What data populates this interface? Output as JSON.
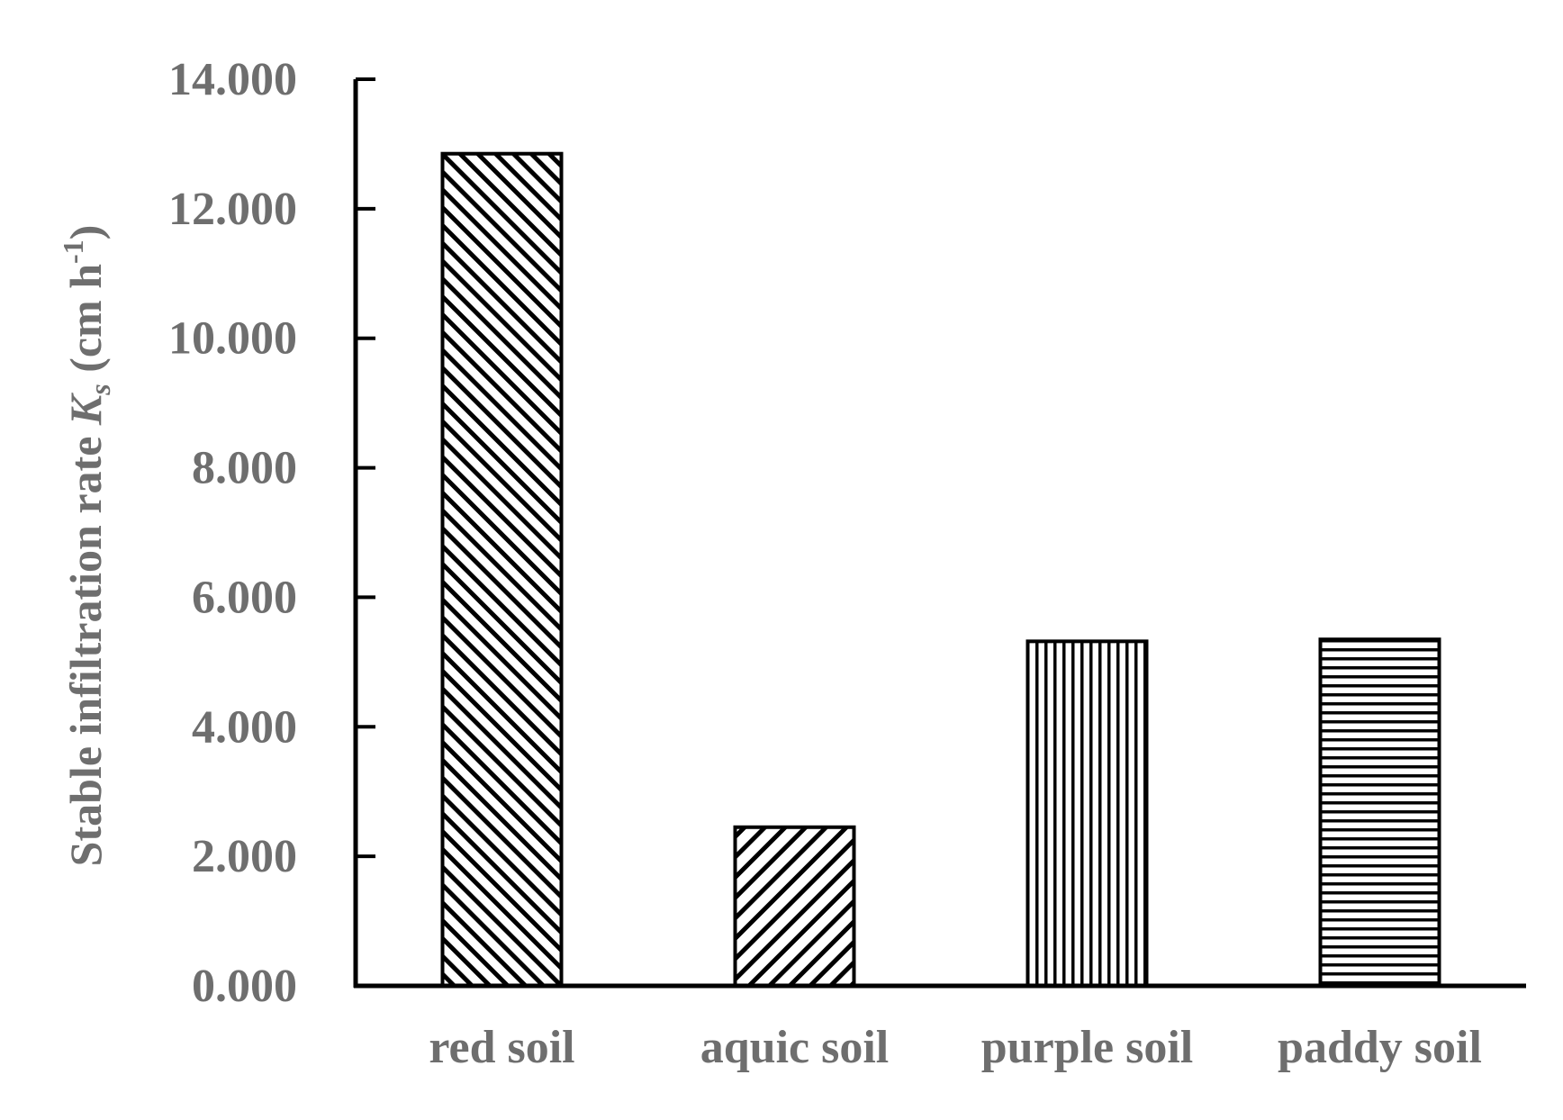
{
  "chart_data": {
    "type": "bar",
    "categories": [
      "red soil",
      "aquic soil",
      "purple soil",
      "paddy soil"
    ],
    "values": [
      12.85,
      2.45,
      5.32,
      5.35
    ],
    "ylabel": {
      "prefix": "Stable infiltration rate ",
      "symbol": "K",
      "subscript": "s",
      "unit_open": " (cm h",
      "unit_sup": "-1",
      "unit_close": ")"
    },
    "ylim": [
      0,
      14
    ],
    "yticks": [
      "0.000",
      "2.000",
      "4.000",
      "6.000",
      "8.000",
      "10.000",
      "12.000",
      "14.000"
    ],
    "bar_patterns": [
      "diagonal-down",
      "diagonal-up",
      "vertical",
      "horizontal"
    ],
    "grid": false,
    "legend": "none",
    "colors": {
      "axis": "#000000",
      "text": "#6e6e6e",
      "bar_fill": "#ffffff",
      "hatch": "#000000"
    }
  }
}
